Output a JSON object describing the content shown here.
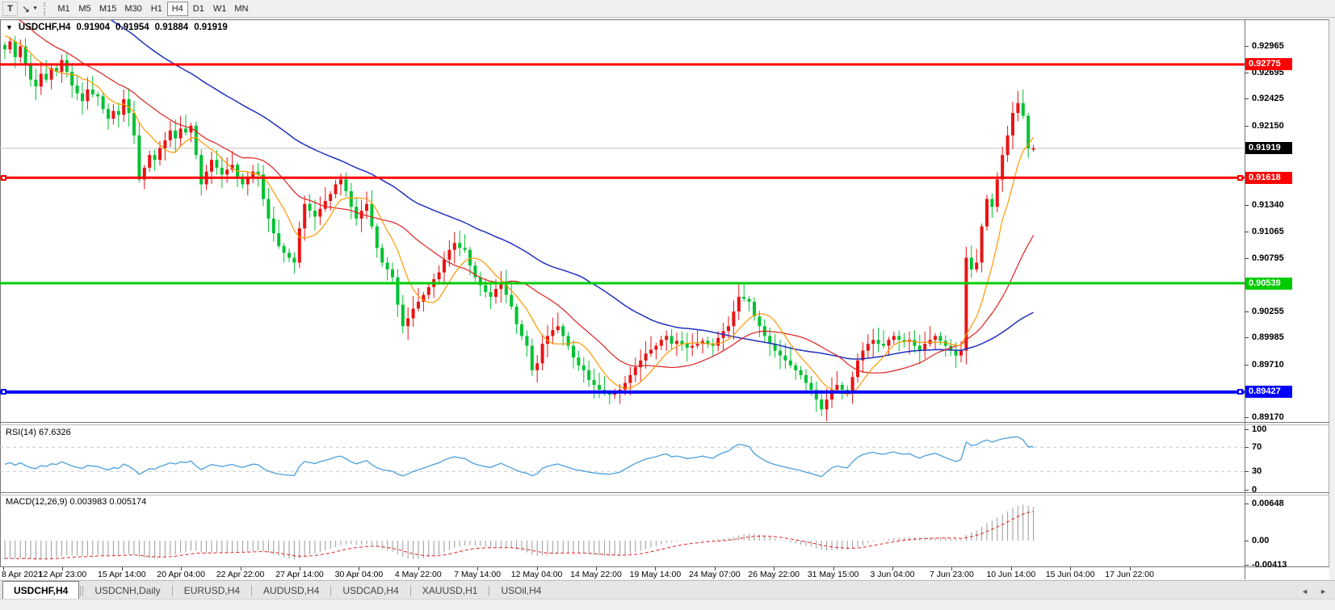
{
  "toolbar": {
    "tool_t": "T",
    "arrows_glyph": "↘",
    "caret": "▼",
    "timeframes": [
      "M1",
      "M5",
      "M15",
      "M30",
      "H1",
      "H4",
      "D1",
      "W1",
      "MN"
    ],
    "active_timeframe": "H4"
  },
  "chart_header": {
    "collapse_marker": "▼",
    "symbol_period": "USDCHF,H4",
    "open": "0.91904",
    "high": "0.91954",
    "low": "0.91884",
    "close": "0.91919"
  },
  "panels": {
    "rsi_label": "RSI(14) 67.6326",
    "macd_label": "MACD(12,26,9) 0.003983 0.005174"
  },
  "price_axis": {
    "ticks": [
      "0.92965",
      "0.92695",
      "0.92425",
      "0.92150",
      "0.91340",
      "0.91065",
      "0.90795",
      "0.90255",
      "0.89985",
      "0.89710",
      "0.89170"
    ],
    "badges": [
      {
        "text": "0.92775",
        "color": "#ff0000",
        "marker": false
      },
      {
        "text": "0.91919",
        "color": "#000000",
        "marker": false
      },
      {
        "text": "0.91618",
        "color": "#ff0000",
        "marker": true
      },
      {
        "text": "0.90539",
        "color": "#00cc00",
        "marker": false
      },
      {
        "text": "0.89427",
        "color": "#0000ff",
        "marker": true
      }
    ]
  },
  "rsi_axis": [
    "100",
    "70",
    "30",
    "0"
  ],
  "macd_axis": [
    "0.00648",
    "0.00",
    "-0.00413"
  ],
  "tabs": {
    "items": [
      {
        "label": "USDCHF,H4",
        "active": true
      },
      {
        "label": "USDCNH,Daily",
        "active": false
      },
      {
        "label": "EURUSD,H4",
        "active": false
      },
      {
        "label": "AUDUSD,H4",
        "active": false
      },
      {
        "label": "USDCAD,H4",
        "active": false
      },
      {
        "label": "XAUUSD,H1",
        "active": false
      },
      {
        "label": "USOil,H4",
        "active": false
      }
    ],
    "scroll_left": "◄",
    "scroll_right": "►"
  },
  "palette": {
    "bull_red": "#e81414",
    "bear_green": "#00c232",
    "ma_fast_orange": "#ff9900",
    "ma_mid_red": "#e02020",
    "ma_slow_blue": "#2030c0",
    "rsi_blue": "#4aa0dc",
    "rsi_grid_gray": "#c9c9c9",
    "macd_hist_gray": "#9a9a9a",
    "macd_signal_red": "#e02020",
    "level_red": "#ff0000",
    "level_green": "#00cc00",
    "level_blue": "#0000ff",
    "current_price_gray": "#c4c4c4"
  },
  "chart_data": {
    "type": "candlestick",
    "symbol": "USDCHF",
    "timeframe": "H4",
    "price_range": [
      0.89129,
      0.93228
    ],
    "current_price": 0.91919,
    "last_candle": {
      "open": 0.91904,
      "high": 0.91954,
      "low": 0.91884,
      "close": 0.91919
    },
    "closes": [
      0.9293,
      0.9301,
      0.9285,
      0.9296,
      0.9278,
      0.9262,
      0.9255,
      0.9268,
      0.9262,
      0.9274,
      0.927,
      0.9282,
      0.927,
      0.9256,
      0.9248,
      0.924,
      0.9252,
      0.9247,
      0.9245,
      0.9232,
      0.9222,
      0.923,
      0.9226,
      0.9242,
      0.9228,
      0.9205,
      0.916,
      0.9172,
      0.9185,
      0.918,
      0.9192,
      0.92,
      0.921,
      0.9202,
      0.9212,
      0.9208,
      0.9215,
      0.9185,
      0.9155,
      0.9168,
      0.918,
      0.9172,
      0.9165,
      0.917,
      0.9175,
      0.9162,
      0.9155,
      0.9162,
      0.9168,
      0.9165,
      0.914,
      0.912,
      0.9105,
      0.9092,
      0.9085,
      0.908,
      0.9075,
      0.911,
      0.9135,
      0.9128,
      0.9122,
      0.913,
      0.9138,
      0.9145,
      0.9155,
      0.916,
      0.9148,
      0.9132,
      0.912,
      0.9128,
      0.9135,
      0.9112,
      0.909,
      0.9075,
      0.9068,
      0.906,
      0.9032,
      0.901,
      0.9018,
      0.9028,
      0.9035,
      0.9042,
      0.905,
      0.9058,
      0.9065,
      0.9078,
      0.9088,
      0.9095,
      0.909,
      0.9088,
      0.9072,
      0.906,
      0.9052,
      0.9045,
      0.904,
      0.9048,
      0.9055,
      0.9042,
      0.903,
      0.9012,
      0.9,
      0.899,
      0.8965,
      0.8972,
      0.8992,
      0.9,
      0.9006,
      0.901,
      0.9,
      0.899,
      0.8978,
      0.897,
      0.8965,
      0.8955,
      0.895,
      0.8945,
      0.8942,
      0.894,
      0.8942,
      0.8945,
      0.8952,
      0.896,
      0.8968,
      0.8975,
      0.8982,
      0.8986,
      0.899,
      0.8996,
      0.9,
      0.8992,
      0.8995,
      0.8992,
      0.8988,
      0.899,
      0.8992,
      0.8995,
      0.8992,
      0.899,
      0.8998,
      0.9005,
      0.901,
      0.9025,
      0.904,
      0.9038,
      0.9035,
      0.902,
      0.901,
      0.9,
      0.8992,
      0.8985,
      0.898,
      0.8975,
      0.897,
      0.8965,
      0.896,
      0.8952,
      0.8945,
      0.8935,
      0.8925,
      0.8935,
      0.8945,
      0.895,
      0.8945,
      0.8942,
      0.8958,
      0.8975,
      0.8985,
      0.8992,
      0.8996,
      0.8992,
      0.899,
      0.8996,
      0.9,
      0.8996,
      0.8994,
      0.8996,
      0.899,
      0.8985,
      0.8992,
      0.8996,
      0.9,
      0.8995,
      0.899,
      0.8985,
      0.898,
      0.8985,
      0.908,
      0.9068,
      0.9075,
      0.9112,
      0.914,
      0.9132,
      0.916,
      0.9185,
      0.9205,
      0.9228,
      0.9238,
      0.9225,
      0.9192,
      0.91919
    ],
    "levels": [
      {
        "price": 0.92775,
        "color": "#ff0000",
        "width": 3,
        "edge_marker": false
      },
      {
        "price": 0.91618,
        "color": "#ff0000",
        "width": 3,
        "edge_marker": true
      },
      {
        "price": 0.90539,
        "color": "#00cc00",
        "width": 3,
        "edge_marker": false
      },
      {
        "price": 0.89427,
        "color": "#0000ff",
        "width": 4,
        "edge_marker": true
      }
    ],
    "y_ticks": [
      0.92965,
      0.92695,
      0.92425,
      0.9215,
      0.9134,
      0.91065,
      0.90795,
      0.90255,
      0.89985,
      0.8971,
      0.8917
    ],
    "x_labels": [
      "8 Apr 2021",
      "12 Apr 23:00",
      "15 Apr 14:00",
      "20 Apr 04:00",
      "22 Apr 22:00",
      "27 Apr 14:00",
      "30 Apr 04:00",
      "4 May 22:00",
      "7 May 14:00",
      "12 May 04:00",
      "14 May 22:00",
      "19 May 14:00",
      "24 May 07:00",
      "26 May 22:00",
      "31 May 15:00",
      "3 Jun 04:00",
      "7 Jun 23:00",
      "10 Jun 14:00",
      "15 Jun 04:00",
      "17 Jun 22:00"
    ],
    "indicators": {
      "sma_fast": 8,
      "sma_mid": 21,
      "sma_slow": 55,
      "rsi_period": 14,
      "rsi_levels": [
        30,
        70
      ],
      "rsi_value": 67.6326,
      "macd_params": [
        12,
        26,
        9
      ],
      "macd_value": 0.003983,
      "macd_signal": 0.005174,
      "macd_scale_max": 0.00648,
      "macd_scale_min": -0.00413
    }
  }
}
